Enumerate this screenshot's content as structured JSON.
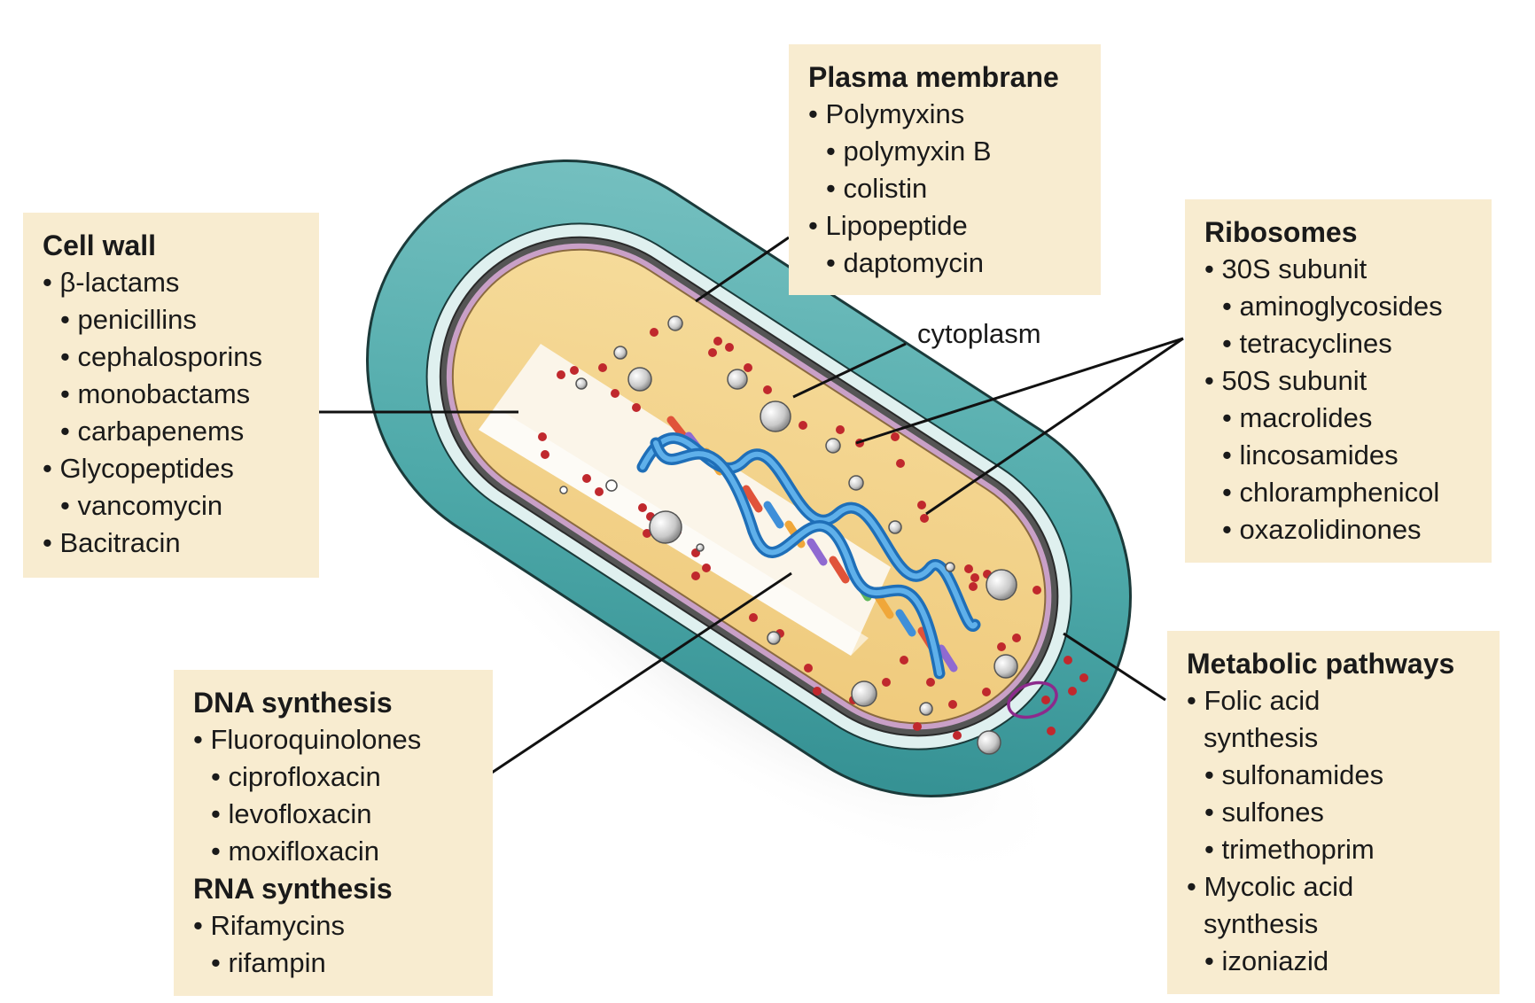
{
  "colors": {
    "box_bg": "#f8ecd0",
    "outer_capsule": "#4ea9a9",
    "cytoplasm": "#f2d189",
    "dna_strand": "#3a8fd6",
    "ribosome_dots": "#c0282d",
    "plasmid": "#8c2a8c",
    "leader_line": "#111111"
  },
  "labels": {
    "cytoplasm": "cytoplasm"
  },
  "boxes": {
    "cell_wall": {
      "title": "Cell wall",
      "items": [
        {
          "text": "β-lactams",
          "level": 0,
          "bullet": true
        },
        {
          "text": "penicillins",
          "level": 1,
          "bullet": true
        },
        {
          "text": "cephalosporins",
          "level": 1,
          "bullet": true
        },
        {
          "text": "monobactams",
          "level": 1,
          "bullet": true
        },
        {
          "text": "carbapenems",
          "level": 1,
          "bullet": true
        },
        {
          "text": "Glycopeptides",
          "level": 0,
          "bullet": true
        },
        {
          "text": "vancomycin",
          "level": 1,
          "bullet": true
        },
        {
          "text": "Bacitracin",
          "level": 0,
          "bullet": true
        }
      ]
    },
    "plasma_membrane": {
      "title": "Plasma membrane",
      "items": [
        {
          "text": "Polymyxins",
          "level": 0,
          "bullet": true
        },
        {
          "text": "polymyxin B",
          "level": 1,
          "bullet": true
        },
        {
          "text": "colistin",
          "level": 1,
          "bullet": true
        },
        {
          "text": "Lipopeptide",
          "level": 0,
          "bullet": true
        },
        {
          "text": "daptomycin",
          "level": 1,
          "bullet": true
        }
      ]
    },
    "ribosomes": {
      "title": "Ribosomes",
      "items": [
        {
          "text": "30S subunit",
          "level": 0,
          "bullet": true
        },
        {
          "text": "aminoglycosides",
          "level": 1,
          "bullet": true
        },
        {
          "text": "tetracyclines",
          "level": 1,
          "bullet": true
        },
        {
          "text": "50S subunit",
          "level": 0,
          "bullet": true
        },
        {
          "text": "macrolides",
          "level": 1,
          "bullet": true
        },
        {
          "text": "lincosamides",
          "level": 1,
          "bullet": true
        },
        {
          "text": "chloramphenicol",
          "level": 1,
          "bullet": true
        },
        {
          "text": "oxazolidinones",
          "level": 1,
          "bullet": true
        }
      ]
    },
    "dna_rna": {
      "title": "DNA synthesis",
      "items": [
        {
          "text": "Fluoroquinolones",
          "level": 0,
          "bullet": true
        },
        {
          "text": "ciprofloxacin",
          "level": 1,
          "bullet": true
        },
        {
          "text": "levofloxacin",
          "level": 1,
          "bullet": true
        },
        {
          "text": "moxifloxacin",
          "level": 1,
          "bullet": true
        }
      ],
      "title2": "RNA synthesis",
      "items2": [
        {
          "text": "Rifamycins",
          "level": 0,
          "bullet": true
        },
        {
          "text": "rifampin",
          "level": 1,
          "bullet": true
        }
      ]
    },
    "metabolic": {
      "title": "Metabolic pathways",
      "items": [
        {
          "text": "Folic acid",
          "level": 0,
          "bullet": true
        },
        {
          "text": "synthesis",
          "level": 0,
          "bullet": false
        },
        {
          "text": "sulfonamides",
          "level": 1,
          "bullet": true
        },
        {
          "text": "sulfones",
          "level": 1,
          "bullet": true
        },
        {
          "text": "trimethoprim",
          "level": 1,
          "bullet": true
        },
        {
          "text": "Mycolic acid",
          "level": 0,
          "bullet": true
        },
        {
          "text": "synthesis",
          "level": 0,
          "bullet": false
        },
        {
          "text": "izoniazid",
          "level": 1,
          "bullet": true
        }
      ]
    }
  }
}
